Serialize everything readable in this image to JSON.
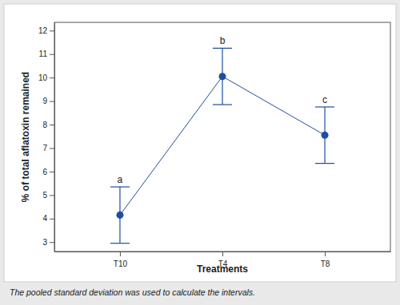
{
  "chart_data": {
    "type": "interval",
    "x_label": "Treatments",
    "y_label": "% of total aflatoxin remained",
    "footnote": "The pooled standard deviation was used to calculate the intervals.",
    "categories": [
      "T10",
      "T4",
      "T8"
    ],
    "values": [
      4.15,
      10.05,
      7.55
    ],
    "errors": [
      1.2,
      1.2,
      1.2
    ],
    "group_letters": [
      "a",
      "b",
      "c"
    ],
    "color": "#1f4e9c",
    "marker": "circle",
    "line_style": "solid",
    "ylim": [
      2.6,
      12.35
    ],
    "yticks": [
      3,
      4,
      5,
      6,
      7,
      8,
      9,
      10,
      11,
      12
    ],
    "grid": false
  }
}
